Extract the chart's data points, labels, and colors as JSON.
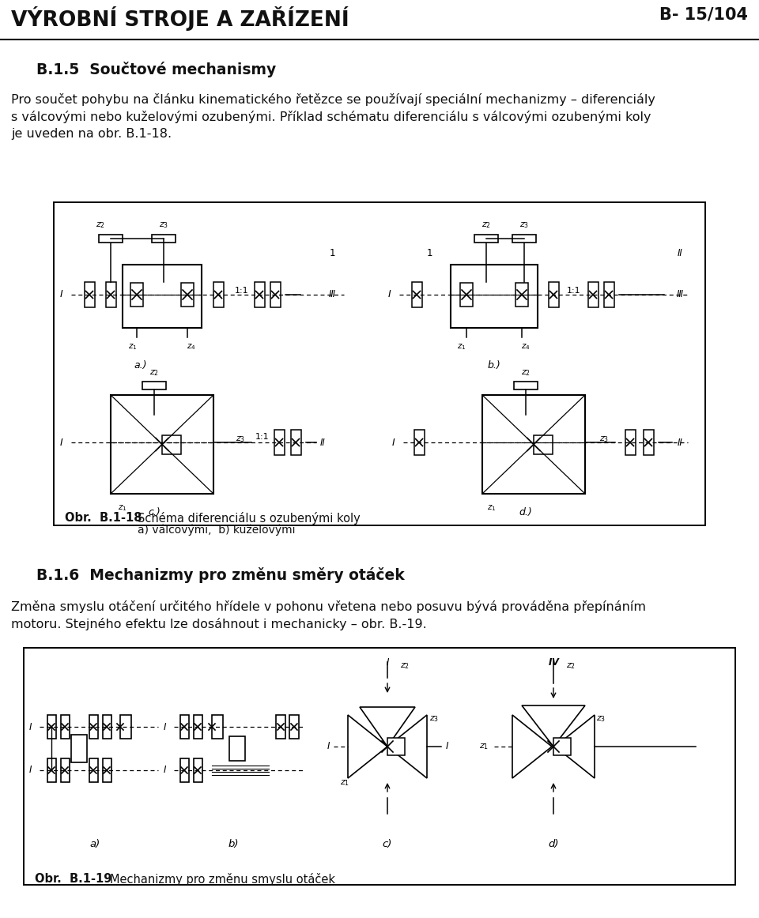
{
  "page_title": "VÝROBNÍ STROJE A ZAŘÍZENÍ",
  "page_number": "B- 15/104",
  "section_title": "B.1.5  Součtové mechanismy",
  "paragraph1_l1": "Pro součet pohybu na článku kinematického řetězce se používají speciální mechanizmy – diferenciály",
  "paragraph1_l2": "s válcovými nebo kuželovými ozubenými. Příklad schématu diferenciálu s válcovými ozubenými koly",
  "paragraph1_l3": "je uveden na obr. B.1-18.",
  "fig1_caption_bold": "Obr.  B.1-18",
  "fig1_caption_text": "Schéma diferenciálu s ozubenými koly",
  "fig1_caption_sub": "a) válcovými,  b) kuželovými",
  "section2_title": "B.1.6  Mechanizmy pro změnu směry otáček",
  "paragraph2_l1": "Změna smyslu otáčení určitého hřídele v pohonu vřetena nebo posuvu bývá prováděna přepínáním",
  "paragraph2_l2": "motoru. Stejného efektu lze dosáhnout i mechanicky – obr. B.-19.",
  "fig2_caption_bold": "Obr.  B.1-19",
  "fig2_caption_text": "Mechanizmy pro změnu smyslu otáček",
  "bg_color": "#ffffff",
  "text_color": "#111111",
  "line_color": "#000000"
}
